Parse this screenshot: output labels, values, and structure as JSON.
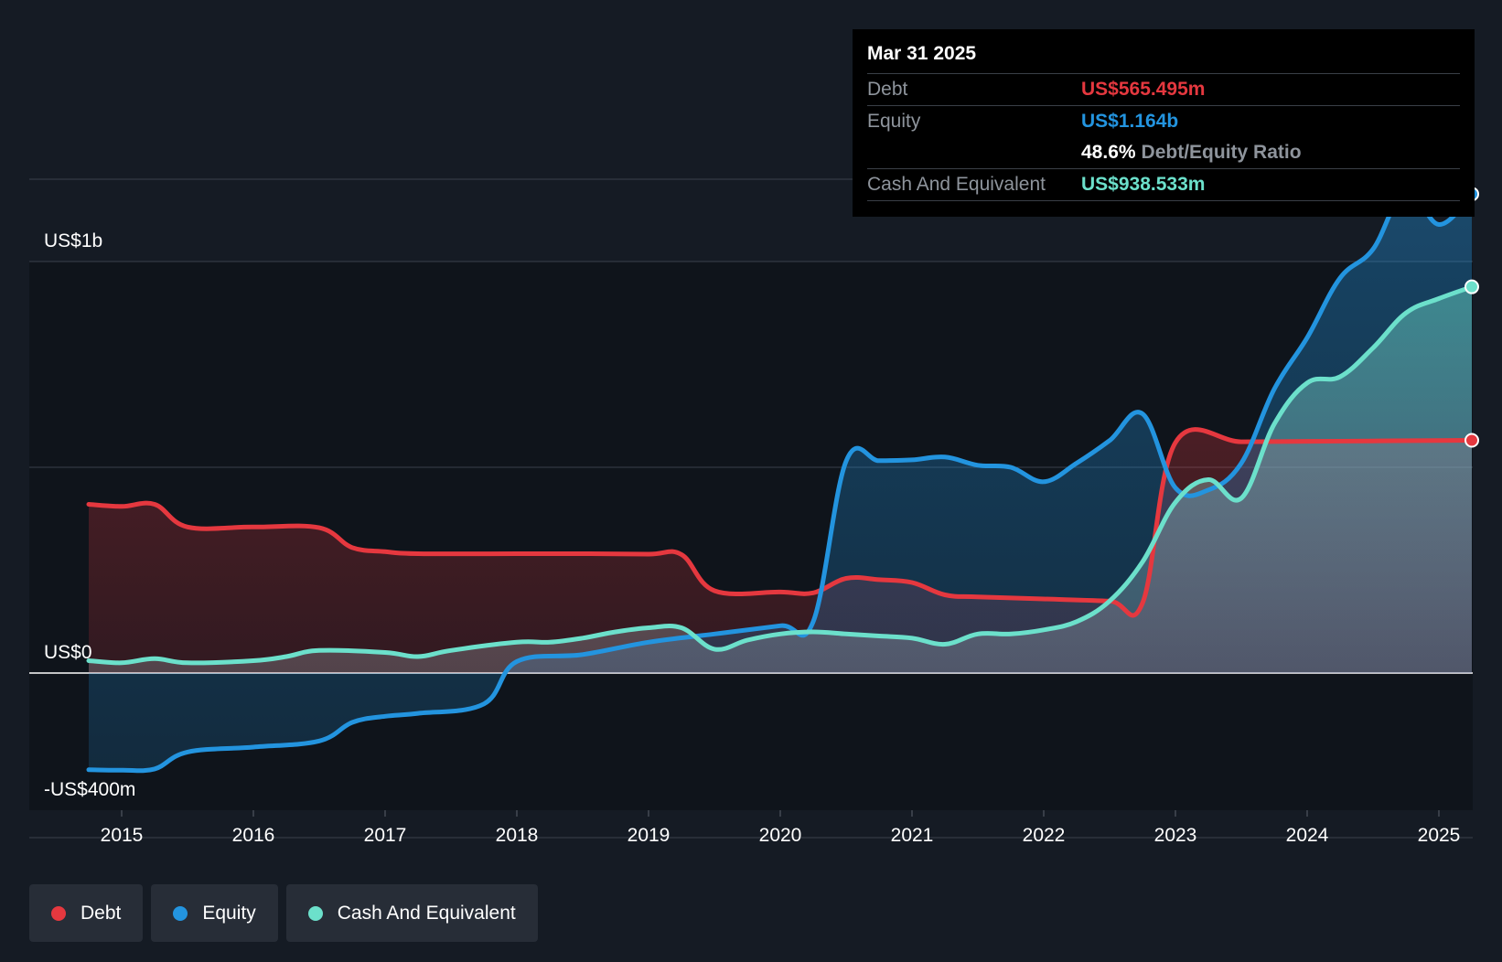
{
  "tooltip": {
    "date": "Mar 31 2025",
    "debt_label": "Debt",
    "debt_value": "US$565.495m",
    "equity_label": "Equity",
    "equity_value": "US$1.164b",
    "ratio_value": "48.6%",
    "ratio_label": "Debt/Equity Ratio",
    "cash_label": "Cash And Equivalent",
    "cash_value": "US$938.533m"
  },
  "legend": [
    {
      "label": "Debt",
      "color": "#e5383f"
    },
    {
      "label": "Equity",
      "color": "#2394df"
    },
    {
      "label": "Cash And Equivalent",
      "color": "#6ce0cb"
    }
  ],
  "chart_data": {
    "type": "area",
    "ylabels": {
      "top": "US$1b",
      "zero": "US$0",
      "bottom": "-US$400m"
    },
    "xticks": [
      "2015",
      "2016",
      "2017",
      "2018",
      "2019",
      "2020",
      "2021",
      "2022",
      "2023",
      "2024",
      "2025"
    ],
    "ylim": [
      -400,
      1200
    ],
    "yticks": [
      -400,
      0,
      500,
      1000,
      1200
    ],
    "series": [
      {
        "name": "Debt",
        "color": "#e5383f",
        "x": [
          2014.75,
          2015.0,
          2015.25,
          2015.5,
          2016.0,
          2016.5,
          2016.75,
          2017.0,
          2017.25,
          2018.0,
          2018.5,
          2019.0,
          2019.25,
          2019.5,
          2020.0,
          2020.25,
          2020.5,
          2020.75,
          2021.0,
          2021.25,
          2021.5,
          2022.0,
          2022.5,
          2022.75,
          2023.0,
          2023.5,
          2024.0,
          2024.5,
          2025.0,
          2025.25
        ],
        "y": [
          410,
          405,
          410,
          355,
          355,
          353,
          305,
          295,
          290,
          290,
          290,
          289,
          288,
          200,
          197,
          195,
          230,
          227,
          220,
          190,
          185,
          180,
          175,
          170,
          560,
          562,
          563,
          564,
          565,
          565.5
        ]
      },
      {
        "name": "Equity",
        "color": "#2394df",
        "x": [
          2014.75,
          2015.0,
          2015.25,
          2015.5,
          2016.0,
          2016.5,
          2016.75,
          2017.0,
          2017.25,
          2017.75,
          2018.0,
          2018.5,
          2019.0,
          2019.5,
          2020.0,
          2020.25,
          2020.5,
          2020.75,
          2021.0,
          2021.25,
          2021.5,
          2021.75,
          2022.0,
          2022.25,
          2022.5,
          2022.75,
          2023.0,
          2023.25,
          2023.5,
          2023.75,
          2024.0,
          2024.25,
          2024.5,
          2024.75,
          2025.0,
          2025.25
        ],
        "y": [
          -235,
          -236,
          -233,
          -192,
          -180,
          -165,
          -120,
          -105,
          -98,
          -75,
          28,
          45,
          75,
          95,
          115,
          125,
          515,
          516,
          518,
          525,
          505,
          500,
          465,
          510,
          565,
          630,
          450,
          445,
          510,
          690,
          815,
          960,
          1030,
          1175,
          1090,
          1164
        ]
      },
      {
        "name": "Cash And Equivalent",
        "color": "#6ce0cb",
        "x": [
          2014.75,
          2015.0,
          2015.25,
          2015.5,
          2016.0,
          2016.25,
          2016.5,
          2017.0,
          2017.25,
          2017.5,
          2018.0,
          2018.25,
          2018.5,
          2018.75,
          2019.0,
          2019.25,
          2019.5,
          2019.75,
          2020.0,
          2020.25,
          2020.5,
          2020.75,
          2021.0,
          2021.25,
          2021.5,
          2021.75,
          2022.0,
          2022.25,
          2022.5,
          2022.75,
          2023.0,
          2023.25,
          2023.5,
          2023.75,
          2024.0,
          2024.25,
          2024.5,
          2024.75,
          2025.0,
          2025.25
        ],
        "y": [
          30,
          25,
          35,
          25,
          30,
          40,
          55,
          50,
          40,
          55,
          75,
          75,
          85,
          100,
          110,
          110,
          58,
          80,
          95,
          100,
          95,
          90,
          85,
          70,
          95,
          95,
          105,
          125,
          175,
          270,
          415,
          470,
          425,
          605,
          705,
          720,
          790,
          875,
          910,
          938.5
        ]
      }
    ]
  }
}
